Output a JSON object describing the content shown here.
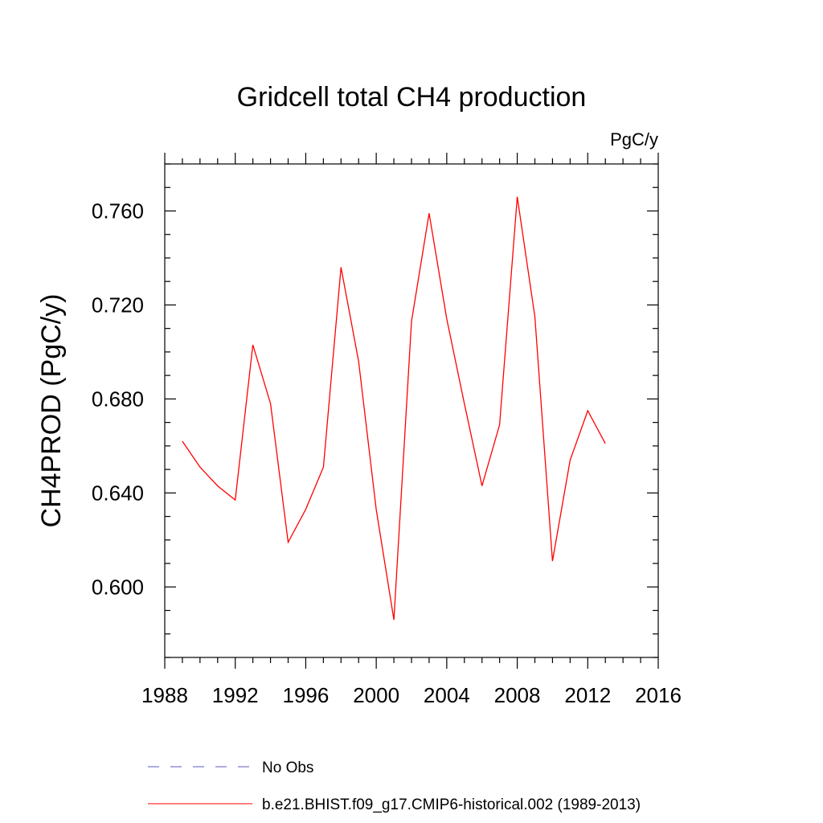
{
  "chart_data": {
    "type": "line",
    "title": "Gridcell total CH4 production",
    "units_label": "PgC/y",
    "xlabel": "",
    "ylabel": "CH4PROD  (PgC/y)",
    "xlim": [
      1988,
      2016
    ],
    "ylim": [
      0.57,
      0.78
    ],
    "x_ticks": [
      1988,
      1992,
      1996,
      2000,
      2004,
      2008,
      2012,
      2016
    ],
    "x_tick_labels": [
      "1988",
      "1992",
      "1996",
      "2000",
      "2004",
      "2008",
      "2012",
      "2016"
    ],
    "y_ticks": [
      0.6,
      0.64,
      0.68,
      0.72,
      0.76
    ],
    "y_tick_labels": [
      "0.600",
      "0.640",
      "0.680",
      "0.720",
      "0.760"
    ],
    "grid": false,
    "legend_position": "bottom",
    "series": [
      {
        "name": "b.e21.BHIST.f09_g17.CMIP6-historical.002 (1989-2013)",
        "color": "#ff0000",
        "style": "solid",
        "x": [
          1989,
          1990,
          1991,
          1992,
          1993,
          1994,
          1995,
          1996,
          1997,
          1998,
          1999,
          2000,
          2001,
          2002,
          2003,
          2004,
          2005,
          2006,
          2007,
          2008,
          2009,
          2010,
          2011,
          2012,
          2013
        ],
        "y": [
          0.662,
          0.651,
          0.643,
          0.637,
          0.703,
          0.678,
          0.619,
          0.633,
          0.651,
          0.736,
          0.696,
          0.633,
          0.586,
          0.713,
          0.759,
          0.714,
          0.678,
          0.643,
          0.669,
          0.766,
          0.715,
          0.611,
          0.654,
          0.675,
          0.661
        ]
      }
    ],
    "legend": [
      {
        "label": "No Obs",
        "color": "#5b5bbf",
        "style": "dashed"
      },
      {
        "label": "b.e21.BHIST.f09_g17.CMIP6-historical.002 (1989-2013)",
        "color": "#ff0000",
        "style": "solid"
      }
    ]
  }
}
